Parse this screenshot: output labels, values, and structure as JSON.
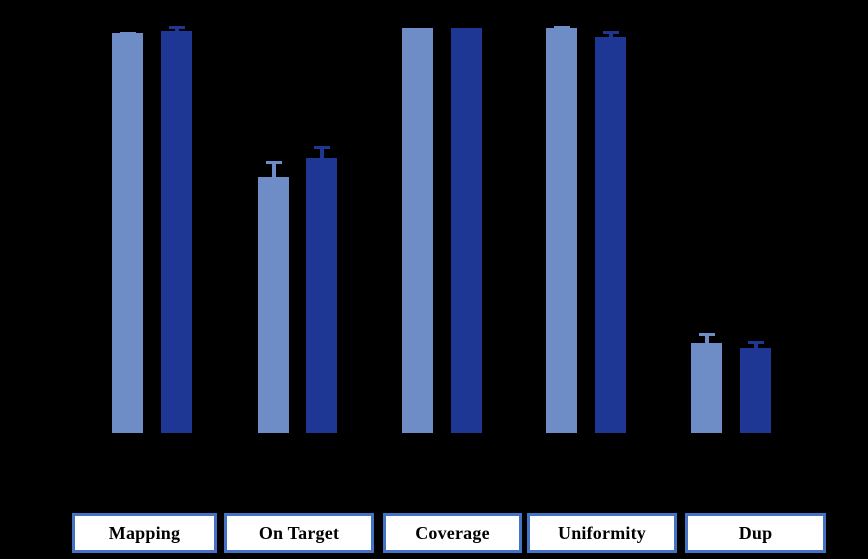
{
  "background_color": "#000000",
  "chart_data": {
    "type": "bar",
    "title": "",
    "categories": [
      "Mapping",
      "On Target",
      "Coverage",
      "Uniformity",
      "Dup"
    ],
    "series": [
      {
        "name": "light-blue-series",
        "color": "#6E8CC6",
        "values": [
          98.6,
          63.1,
          100,
          100,
          22.2
        ],
        "errors_plus": [
          0.4,
          3.9,
          0,
          0.4,
          2.5
        ]
      },
      {
        "name": "dark-blue-series",
        "color": "#1E3794",
        "values": [
          99.1,
          67.7,
          100,
          97.7,
          20.9
        ],
        "errors_plus": [
          1.2,
          3.0,
          0,
          1.5,
          1.7
        ]
      }
    ],
    "ylim": [
      0,
      100
    ],
    "grid": false,
    "legend": "none",
    "error_bars": "upper whisker with cap, colored per series"
  },
  "category_boxes": {
    "fill_color": "#FFFFFF",
    "border_color": "#4472C4",
    "text_color": "#000000"
  }
}
